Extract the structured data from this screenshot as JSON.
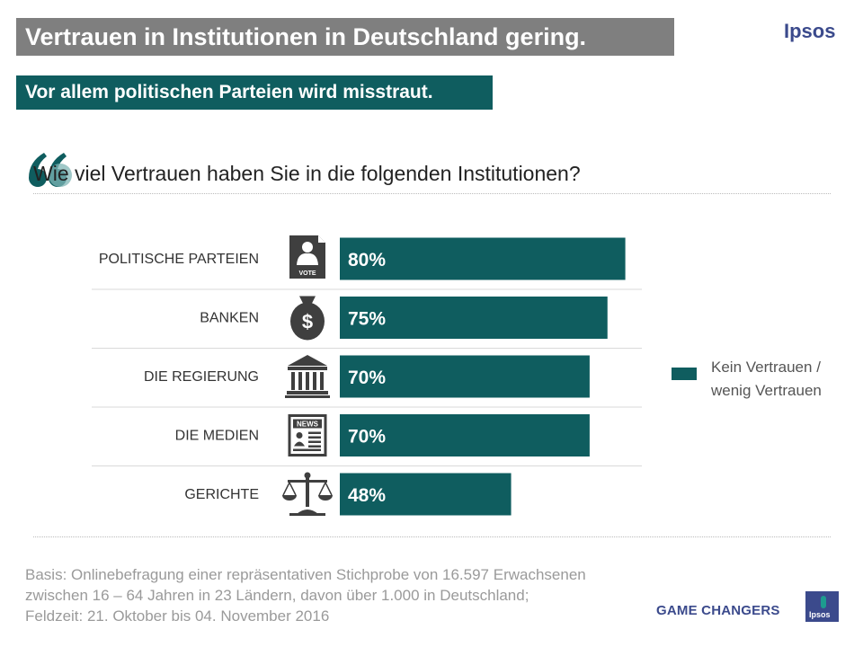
{
  "header": {
    "title": "Vertrauen in Institutionen in Deutschland gering.",
    "subtitle": "Vor allem politischen Parteien wird misstraut.",
    "brand": "Ipsos"
  },
  "question": "Wie viel Vertrauen haben Sie in die folgenden Institutionen?",
  "legend": {
    "line1": "Kein Vertrauen /",
    "line2": "wenig Vertrauen"
  },
  "footer": {
    "basis_lines": [
      "Basis: Onlinebefragung einer repräsentativen Stichprobe von 16.597 Erwachsenen",
      "zwischen 16 – 64 Jahren in 23 Ländern, davon über 1.000 in Deutschland;",
      "Feldzeit: 21. Oktober bis 04. November 2016"
    ],
    "game_changers": "GAME CHANGERS",
    "logo_text": "Ipsos"
  },
  "colors": {
    "bar": "#0f5d5f",
    "title_bg": "#7f7f7f",
    "brand": "#3b4a8c",
    "icon": "#3f3f3f"
  },
  "chart_data": {
    "type": "bar",
    "orientation": "horizontal",
    "categories": [
      "POLITISCHE PARTEIEN",
      "BANKEN",
      "DIE REGIERUNG",
      "DIE MEDIEN",
      "GERICHTE"
    ],
    "icons": [
      "vote-icon",
      "money-bag-icon",
      "government-building-icon",
      "newspaper-icon",
      "scales-icon"
    ],
    "icon_text": {
      "vote-icon": "VOTE",
      "newspaper-icon": "NEWS"
    },
    "series": [
      {
        "name": "Kein Vertrauen / wenig Vertrauen",
        "values": [
          80,
          75,
          70,
          70,
          48
        ]
      }
    ],
    "value_labels": [
      "80%",
      "75%",
      "70%",
      "70%",
      "48%"
    ],
    "xlim": [
      0,
      100
    ],
    "legend_position": "right"
  }
}
